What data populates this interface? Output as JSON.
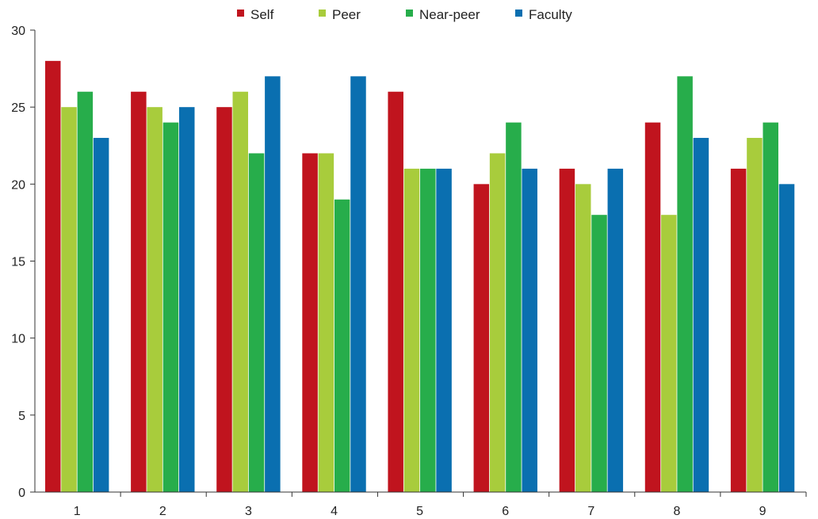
{
  "chart_data": {
    "type": "bar",
    "title": "",
    "xlabel": "",
    "ylabel": "",
    "categories": [
      "1",
      "2",
      "3",
      "4",
      "5",
      "6",
      "7",
      "8",
      "9"
    ],
    "ylim": [
      0,
      30
    ],
    "yticks": [
      "0",
      "5",
      "10",
      "15",
      "20",
      "25",
      "30"
    ],
    "grid": false,
    "legend_position": "top-center",
    "series": [
      {
        "name": "Self",
        "color": "#c0141e",
        "values": [
          28,
          26,
          25,
          22,
          26,
          20,
          21,
          24,
          21
        ]
      },
      {
        "name": "Peer",
        "color": "#a8cc3c",
        "values": [
          25,
          25,
          26,
          22,
          21,
          22,
          20,
          18,
          23
        ]
      },
      {
        "name": "Near-peer",
        "color": "#27ad4b",
        "values": [
          26,
          24,
          22,
          19,
          21,
          24,
          18,
          27,
          24
        ]
      },
      {
        "name": "Faculty",
        "color": "#0a6fb0",
        "values": [
          23,
          25,
          27,
          27,
          21,
          21,
          21,
          23,
          20
        ]
      }
    ]
  }
}
